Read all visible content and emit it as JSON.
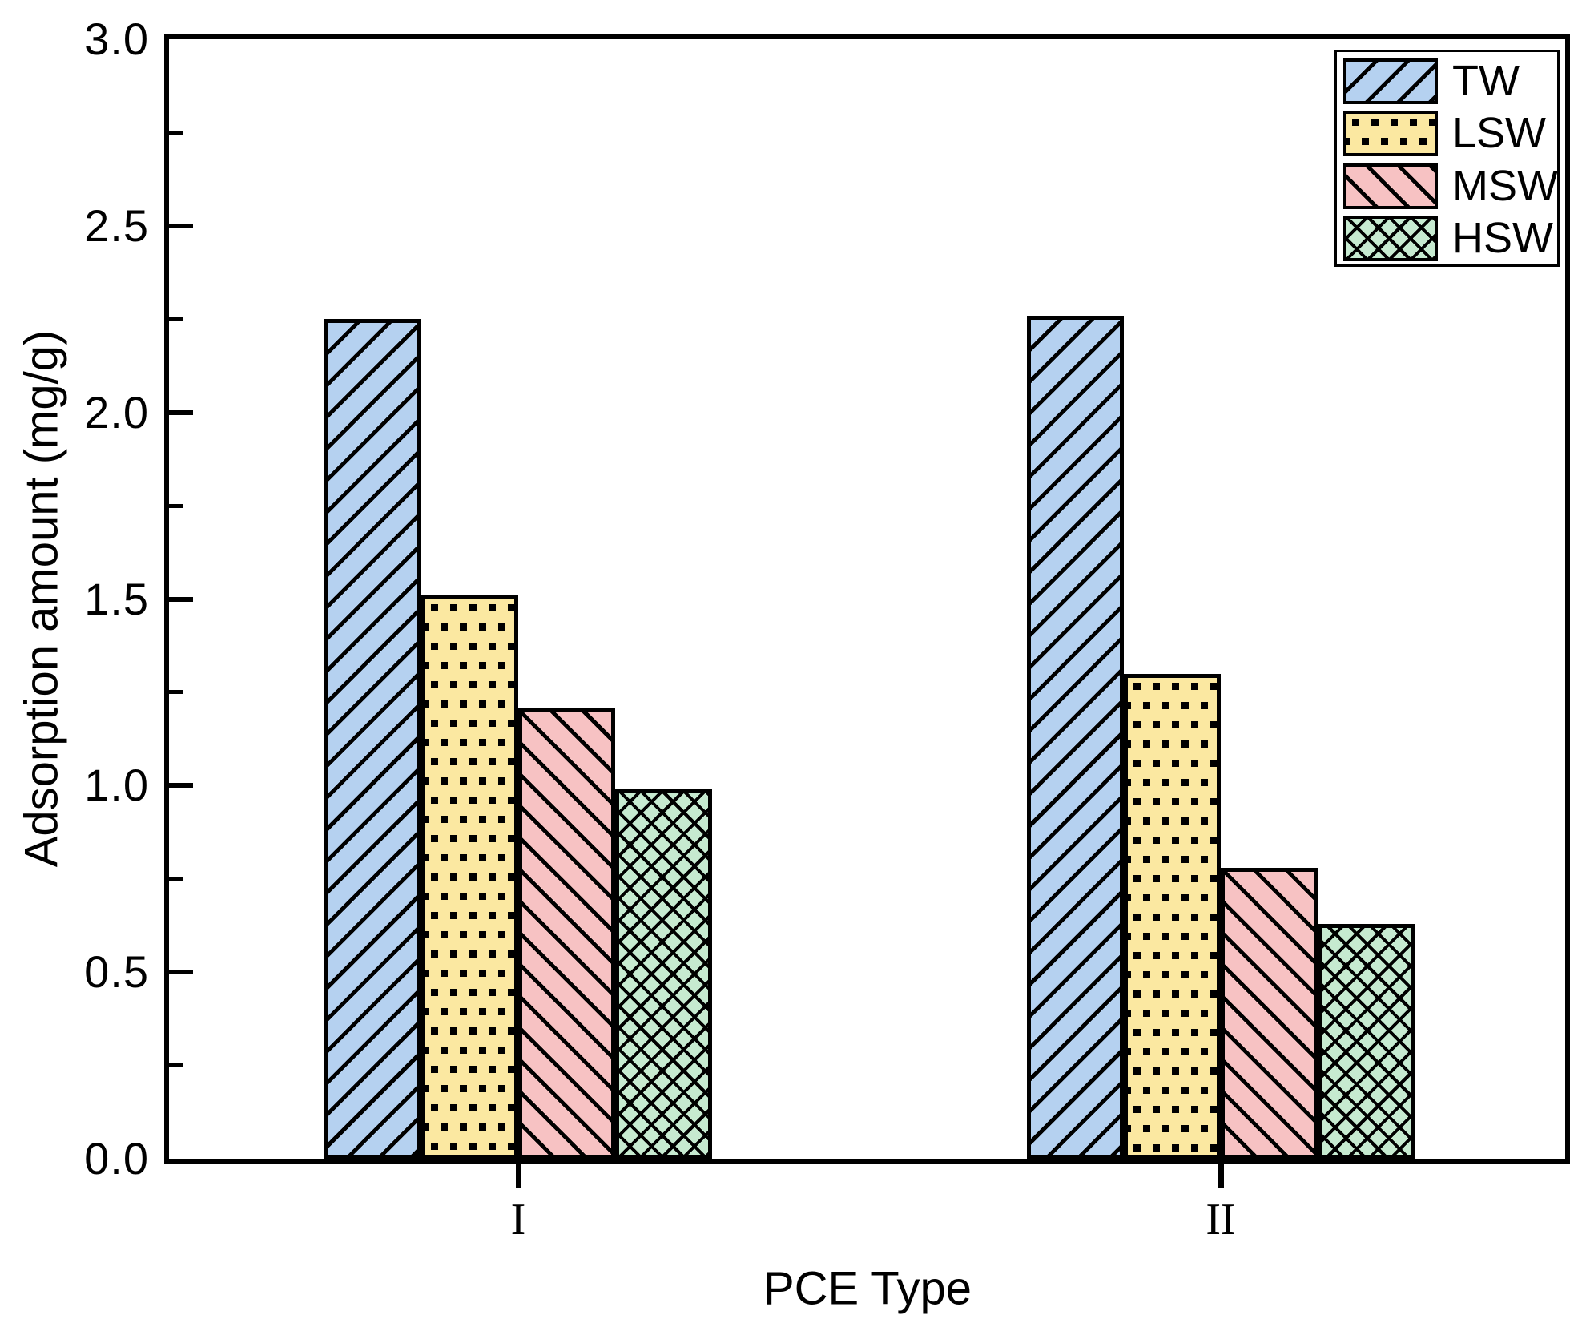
{
  "chart_data": {
    "type": "bar",
    "title": "",
    "xlabel": "PCE Type",
    "ylabel": "Adsorption amount (mg/g)",
    "categories": [
      "I",
      "II"
    ],
    "series": [
      {
        "name": "TW",
        "fill": "#B5D1F0",
        "hatch": "forward-diagonal",
        "values": [
          2.25,
          2.26
        ]
      },
      {
        "name": "LSW",
        "fill": "#FBE8A1",
        "hatch": "square-dots",
        "values": [
          1.51,
          1.3
        ]
      },
      {
        "name": "MSW",
        "fill": "#F7C2C3",
        "hatch": "backward-diagonal",
        "values": [
          1.21,
          0.78
        ]
      },
      {
        "name": "HSW",
        "fill": "#C6EAD0",
        "hatch": "diagonal-crosshatch",
        "values": [
          0.99,
          0.63
        ]
      }
    ],
    "ylim": [
      0,
      3
    ],
    "ytick_labels": [
      "0.0",
      "0.5",
      "1.0",
      "1.5",
      "2.0",
      "2.5",
      "3.0"
    ],
    "ymajor_step": 0.5,
    "yminor_step": 0.25,
    "grid": false,
    "legend": {
      "position": "top-right",
      "entries": [
        "TW",
        "LSW",
        "MSW",
        "HSW"
      ]
    },
    "outline_color": "#000000",
    "background_color": "#FFFFFF"
  }
}
